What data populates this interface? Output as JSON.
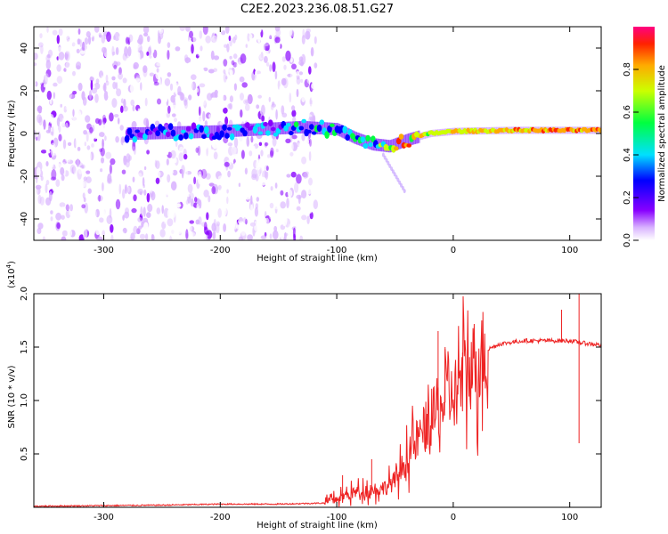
{
  "title": "C2E2.2023.236.08.51.G27",
  "chart_data": [
    {
      "type": "heatmap",
      "title": "",
      "xlabel": "Height of straight line (km)",
      "ylabel": "Frequency (Hz)",
      "xlim": [
        -360,
        127
      ],
      "ylim": [
        -50,
        50
      ],
      "xticks": [
        -300,
        -200,
        -100,
        0,
        100
      ],
      "yticks": [
        -40,
        -20,
        0,
        20,
        40
      ],
      "colorbar": {
        "label": "Normalized spectral amplitude",
        "range": [
          0,
          1
        ],
        "ticks": [
          "0.0",
          "0.2",
          "0.4",
          "0.6",
          "0.8"
        ],
        "tick_values": [
          0.0,
          0.2,
          0.4,
          0.6,
          0.8
        ]
      },
      "ridge_frequency_hz": [
        {
          "x": -270,
          "y": 0.0
        },
        {
          "x": -200,
          "y": 1.0
        },
        {
          "x": -130,
          "y": 3.0
        },
        {
          "x": -100,
          "y": 2.0
        },
        {
          "x": -85,
          "y": -2.0
        },
        {
          "x": -70,
          "y": -5.0
        },
        {
          "x": -55,
          "y": -6.0
        },
        {
          "x": -40,
          "y": -3.0
        },
        {
          "x": -20,
          "y": 0.0
        },
        {
          "x": 0,
          "y": 1.0
        },
        {
          "x": 50,
          "y": 1.5
        },
        {
          "x": 127,
          "y": 1.5
        }
      ],
      "ridge_amplitude": [
        {
          "x": -270,
          "y": 0.35
        },
        {
          "x": -200,
          "y": 0.4
        },
        {
          "x": -130,
          "y": 0.45
        },
        {
          "x": -100,
          "y": 0.5
        },
        {
          "x": -70,
          "y": 0.55
        },
        {
          "x": -40,
          "y": 0.9
        },
        {
          "x": -20,
          "y": 0.8
        },
        {
          "x": 0,
          "y": 0.85
        },
        {
          "x": 50,
          "y": 0.9
        },
        {
          "x": 127,
          "y": 0.95
        }
      ]
    },
    {
      "type": "line",
      "title": "",
      "xlabel": "Height of straight line (km)",
      "ylabel": "SNR (10 * v/v)",
      "y_scale_label": "(x10",
      "y_scale_exp": "4",
      "y_scale_close": ")",
      "xlim": [
        -360,
        127
      ],
      "ylim": [
        0,
        2.0
      ],
      "xticks": [
        -300,
        -200,
        -100,
        0,
        100
      ],
      "yticks": [
        0.5,
        1.0,
        1.5,
        2.0
      ],
      "ytick_labels": [
        "0.5",
        "1.0",
        "1.5",
        "2.0"
      ],
      "series": [
        {
          "name": "SNR",
          "color": "#ee2222",
          "points": [
            {
              "x": -360,
              "y": 0.01
            },
            {
              "x": -250,
              "y": 0.02
            },
            {
              "x": -200,
              "y": 0.03
            },
            {
              "x": -150,
              "y": 0.03
            },
            {
              "x": -110,
              "y": 0.04
            },
            {
              "x": -100,
              "y": 0.08
            },
            {
              "x": -90,
              "y": 0.12
            },
            {
              "x": -80,
              "y": 0.15
            },
            {
              "x": -60,
              "y": 0.18
            },
            {
              "x": -50,
              "y": 0.25
            },
            {
              "x": -40,
              "y": 0.45
            },
            {
              "x": -30,
              "y": 0.65
            },
            {
              "x": -20,
              "y": 0.8
            },
            {
              "x": -10,
              "y": 0.95
            },
            {
              "x": 0,
              "y": 1.05
            },
            {
              "x": 10,
              "y": 1.25
            },
            {
              "x": 20,
              "y": 1.38
            },
            {
              "x": 30,
              "y": 1.48
            },
            {
              "x": 40,
              "y": 1.53
            },
            {
              "x": 60,
              "y": 1.56
            },
            {
              "x": 80,
              "y": 1.56
            },
            {
              "x": 100,
              "y": 1.56
            },
            {
              "x": 110,
              "y": 1.54
            },
            {
              "x": 127,
              "y": 1.52
            }
          ],
          "spikes": [
            {
              "x": -95,
              "y": 0.3
            },
            {
              "x": -70,
              "y": 0.45
            },
            {
              "x": -13,
              "y": 1.65
            },
            {
              "x": -7,
              "y": 1.5
            },
            {
              "x": 8,
              "y": 1.45
            },
            {
              "x": 93,
              "y": 1.85
            },
            {
              "x": 108,
              "y": 2.0
            },
            {
              "x": 108,
              "y": 0.6
            }
          ]
        }
      ]
    }
  ]
}
